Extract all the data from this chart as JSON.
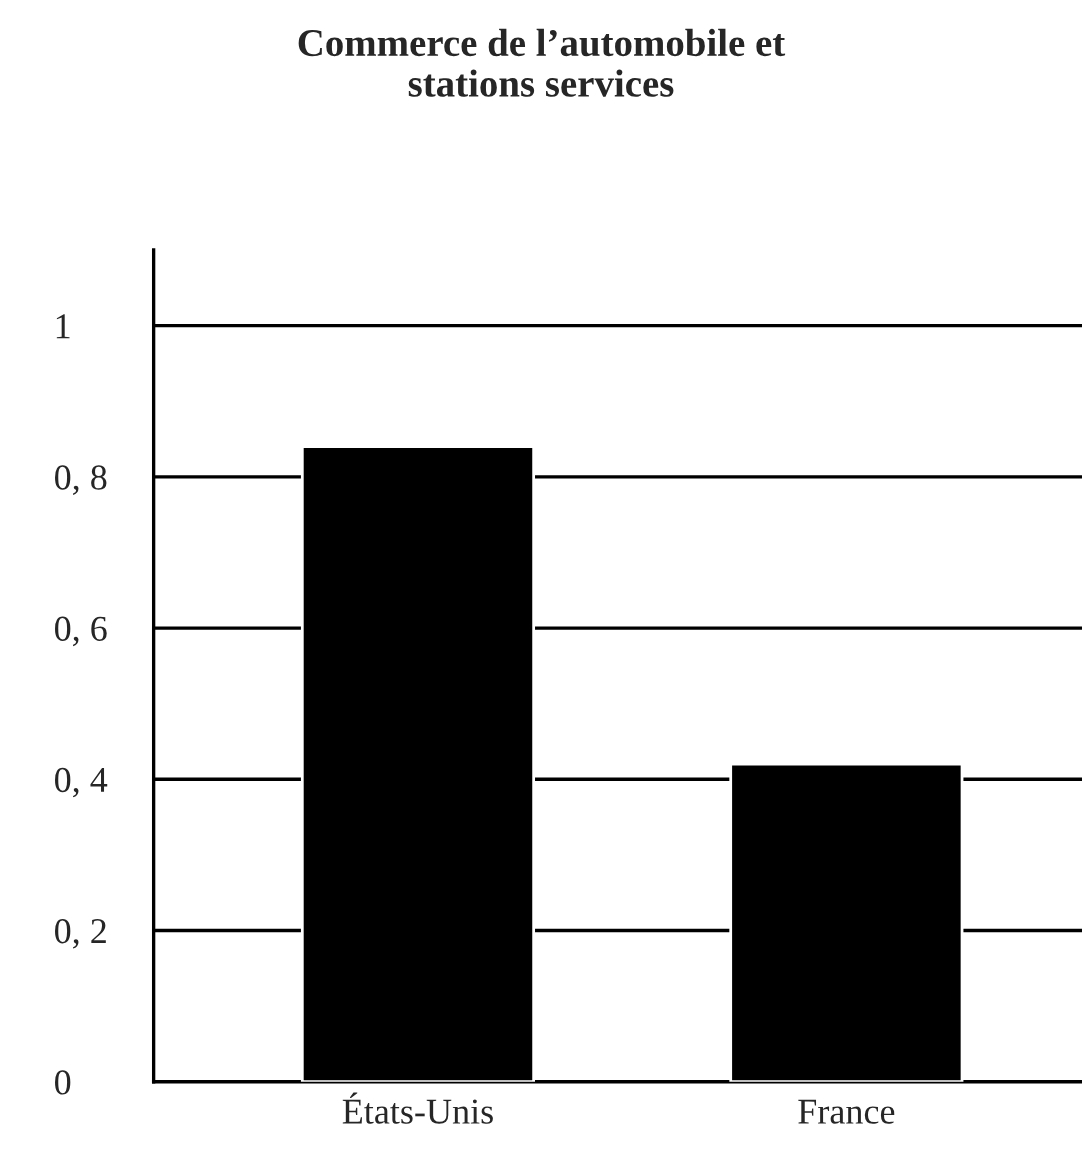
{
  "chart_data": {
    "type": "bar",
    "title": "Commerce de l’automobile et\nstations services",
    "categories": [
      "États-Unis",
      "France"
    ],
    "values": [
      0.84,
      0.42
    ],
    "color": "#000000",
    "ylim": [
      0,
      1.1
    ],
    "yticks": [
      0,
      {
        "value": 0.2,
        "label": "0, 2"
      },
      {
        "value": 0.4,
        "label": "0, 4"
      },
      {
        "value": 0.6,
        "label": "0, 6"
      },
      {
        "value": 0.8,
        "label": "0, 8"
      },
      1
    ],
    "grid": "y",
    "legend": false
  }
}
